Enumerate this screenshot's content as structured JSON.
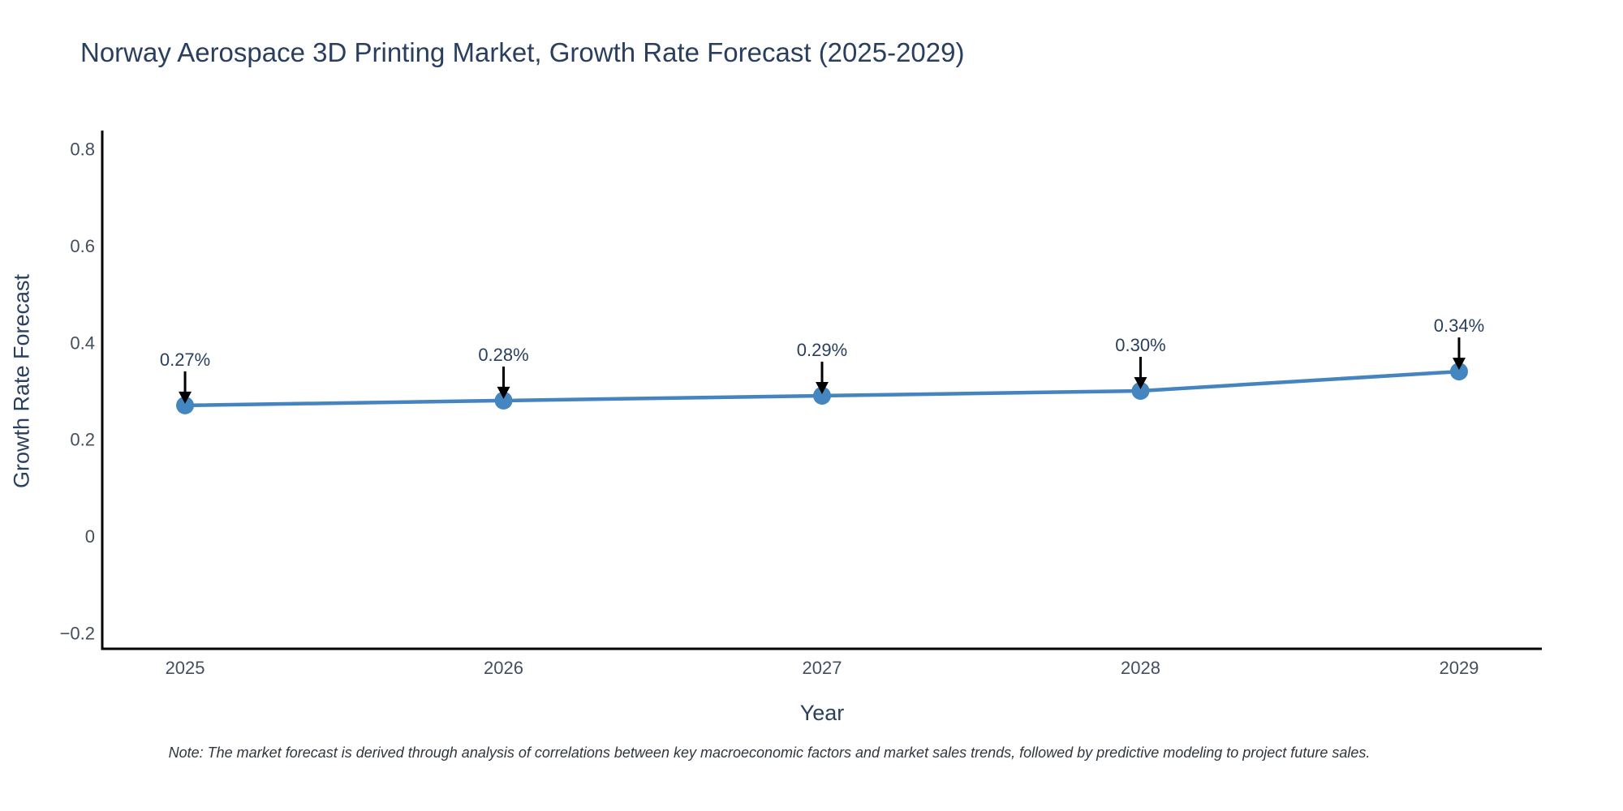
{
  "title": "Norway Aerospace 3D Printing Market, Growth Rate Forecast (2025-2029)",
  "note": "Note: The market forecast is derived through analysis of correlations between key macroeconomic factors and market sales trends, followed by predictive modeling to project future sales.",
  "chart_data": {
    "type": "line",
    "title": "Norway Aerospace 3D Printing Market, Growth Rate Forecast (2025-2029)",
    "xlabel": "Year",
    "ylabel": "Growth Rate Forecast",
    "x": [
      2025,
      2026,
      2027,
      2028,
      2029
    ],
    "values": [
      0.27,
      0.28,
      0.29,
      0.3,
      0.34
    ],
    "point_labels": [
      "0.27%",
      "0.28%",
      "0.29%",
      "0.30%",
      "0.34%"
    ],
    "xtick_labels": [
      "2025",
      "2026",
      "2027",
      "2028",
      "2029"
    ],
    "yticks": [
      -0.2,
      0,
      0.2,
      0.4,
      0.6,
      0.8
    ],
    "ytick_labels": [
      "−0.2",
      "0",
      "0.2",
      "0.4",
      "0.6",
      "0.8"
    ],
    "xlim": [
      2024.74,
      2029.26
    ],
    "ylim": [
      -0.233,
      0.838
    ],
    "grid": false,
    "legend": false,
    "line_color": "#4584bf",
    "marker_color": "#4386c0",
    "axis_color": "#000000",
    "arrow_color": "#000000"
  }
}
